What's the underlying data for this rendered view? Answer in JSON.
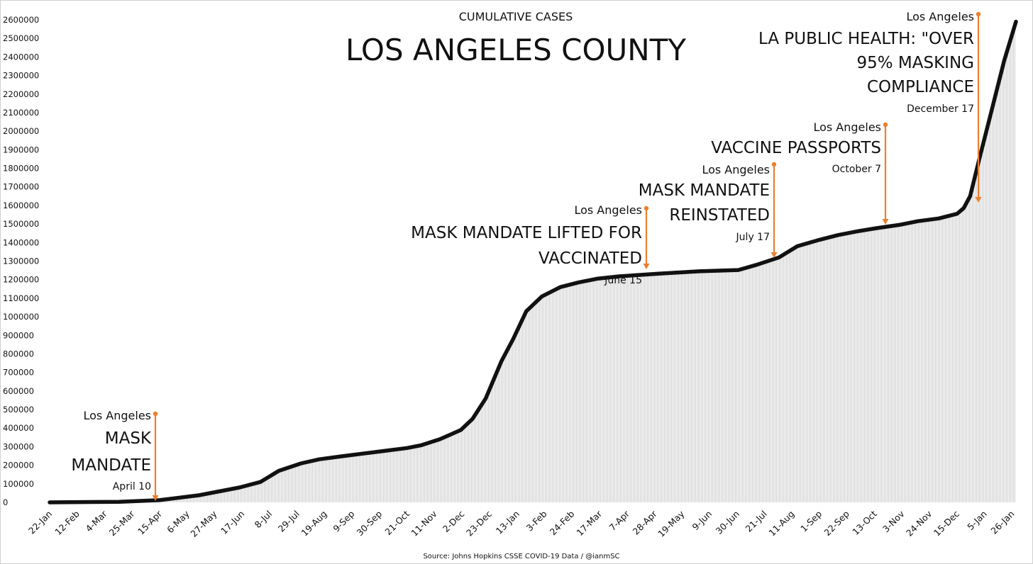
{
  "chart_data": {
    "type": "area",
    "title": "LOS ANGELES COUNTY",
    "subtitle": "CUMULATIVE CASES",
    "source": "Source: Johns Hopkins CSSE COVID-19 Data / @ianmSC",
    "ylim": [
      0,
      2600000
    ],
    "yticks": [
      0,
      100000,
      200000,
      300000,
      400000,
      500000,
      600000,
      700000,
      800000,
      900000,
      1000000,
      1100000,
      1200000,
      1300000,
      1400000,
      1500000,
      1600000,
      1700000,
      1800000,
      1900000,
      2000000,
      2100000,
      2200000,
      2300000,
      2400000,
      2500000,
      2600000
    ],
    "ytick_labels": [
      "0",
      "100000",
      "200000",
      "300000",
      "400000",
      "500000",
      "600000",
      "700000",
      "800000",
      "900000",
      "1000000",
      "1100000",
      "1200000",
      "1300000",
      "1400000",
      "1500000",
      "1600000",
      "1700000",
      "1800000",
      "1900000",
      "2000000",
      "2100000",
      "2200000",
      "2300000",
      "2400000",
      "2500000",
      "2600000"
    ],
    "xtick_labels": [
      "22-Jan",
      "12-Feb",
      "4-Mar",
      "25-Mar",
      "15-Apr",
      "6-May",
      "27-May",
      "17-Jun",
      "8-Jul",
      "29-Jul",
      "19-Aug",
      "9-Sep",
      "30-Sep",
      "21-Oct",
      "11-Nov",
      "2-Dec",
      "23-Dec",
      "13-Jan",
      "3-Feb",
      "24-Feb",
      "17-Mar",
      "7-Apr",
      "28-Apr",
      "19-May",
      "9-Jun",
      "30-Jun",
      "21-Jul",
      "11-Aug",
      "1-Sep",
      "22-Sep",
      "13-Oct",
      "3-Nov",
      "24-Nov",
      "15-Dec",
      "5-Jan",
      "26-Jan"
    ],
    "series": [
      {
        "x": [
          "2020-01-22",
          "2020-03-15",
          "2020-04-15",
          "2020-05-15",
          "2020-06-15",
          "2020-07-01",
          "2020-07-15",
          "2020-08-01",
          "2020-08-15",
          "2020-09-01",
          "2020-10-01",
          "2020-10-21",
          "2020-11-01",
          "2020-11-15",
          "2020-12-01",
          "2020-12-10",
          "2020-12-20",
          "2021-01-01",
          "2021-01-10",
          "2021-01-20",
          "2021-02-01",
          "2021-02-15",
          "2021-03-01",
          "2021-03-15",
          "2021-04-01",
          "2021-05-01",
          "2021-06-01",
          "2021-07-01",
          "2021-07-15",
          "2021-08-01",
          "2021-08-15",
          "2021-09-01",
          "2021-09-15",
          "2021-10-01",
          "2021-10-15",
          "2021-11-01",
          "2021-11-15",
          "2021-12-01",
          "2021-12-15",
          "2021-12-20",
          "2021-12-25",
          "2022-01-01",
          "2022-01-10",
          "2022-01-20",
          "2022-01-29"
        ],
        "values": [
          0,
          3000,
          12000,
          38000,
          80000,
          110000,
          170000,
          210000,
          232000,
          248000,
          275000,
          293000,
          308000,
          340000,
          390000,
          450000,
          560000,
          760000,
          880000,
          1030000,
          1110000,
          1160000,
          1185000,
          1205000,
          1218000,
          1232000,
          1245000,
          1252000,
          1280000,
          1320000,
          1380000,
          1415000,
          1440000,
          1462000,
          1478000,
          1495000,
          1515000,
          1530000,
          1555000,
          1585000,
          1650000,
          1850000,
          2100000,
          2380000,
          2590000
        ]
      }
    ],
    "annotations": [
      {
        "location": "Los Angeles",
        "lines": [
          "MASK",
          "MANDATE"
        ],
        "date": "April 10"
      },
      {
        "location": "Los Angeles",
        "lines": [
          "MASK MANDATE LIFTED FOR",
          "VACCINATED"
        ],
        "date": "June 15"
      },
      {
        "location": "Los Angeles",
        "lines": [
          "MASK MANDATE",
          "REINSTATED"
        ],
        "date": "July 17"
      },
      {
        "location": "Los Angeles",
        "lines": [
          "VACCINE PASSPORTS"
        ],
        "date": "October 7"
      },
      {
        "location": "Los Angeles",
        "lines": [
          "LA PUBLIC HEALTH: \"OVER",
          "95% MASKING",
          "COMPLIANCE"
        ],
        "date": "December 17"
      }
    ],
    "colors": {
      "line": "#111111",
      "fill": "#d9d9d9",
      "annotation": "#ec7f2e"
    },
    "grid": false
  }
}
